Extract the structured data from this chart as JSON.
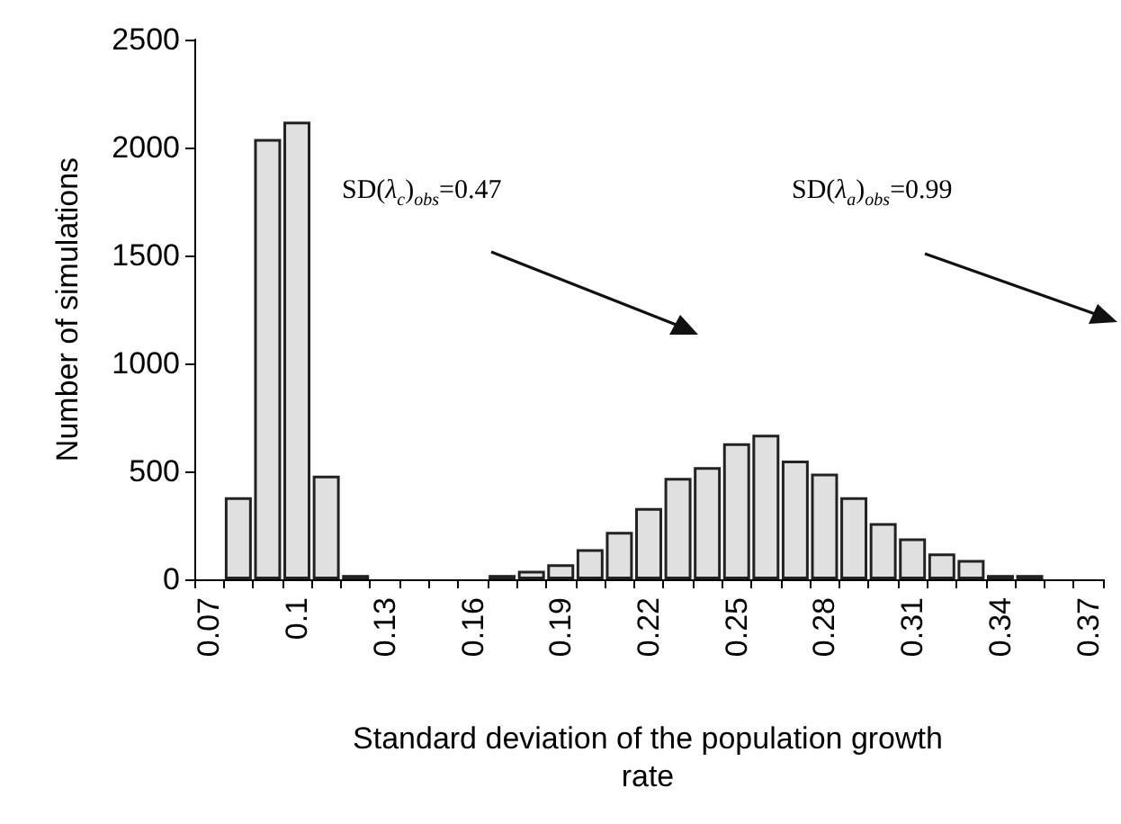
{
  "chart_data": {
    "type": "bar",
    "xlabel": "Standard deviation of the population growth rate",
    "ylabel": "Number of simulations",
    "categories": [
      "0.07",
      null,
      null,
      "0.1",
      null,
      null,
      "0.13",
      null,
      null,
      "0.16",
      null,
      null,
      "0.19",
      null,
      null,
      "0.22",
      null,
      null,
      "0.25",
      null,
      null,
      "0.28",
      null,
      null,
      "0.31",
      null,
      null,
      "0.34",
      null,
      null,
      "0.37"
    ],
    "values": [
      0,
      380,
      2040,
      2120,
      480,
      20,
      0,
      0,
      0,
      0,
      20,
      40,
      70,
      140,
      220,
      330,
      470,
      520,
      630,
      670,
      550,
      490,
      380,
      260,
      190,
      120,
      90,
      20,
      20,
      0,
      0
    ],
    "color": "#e0e0e0",
    "ylim": [
      0,
      2500
    ],
    "yticks": [
      0,
      500,
      1000,
      1500,
      2000,
      2500
    ],
    "grid": false,
    "annotations": [
      "SD(λ$_{c}$)$_{obs}$=0.47",
      "SD(λ$_{a}$)$_{obs}$=0.99"
    ]
  }
}
